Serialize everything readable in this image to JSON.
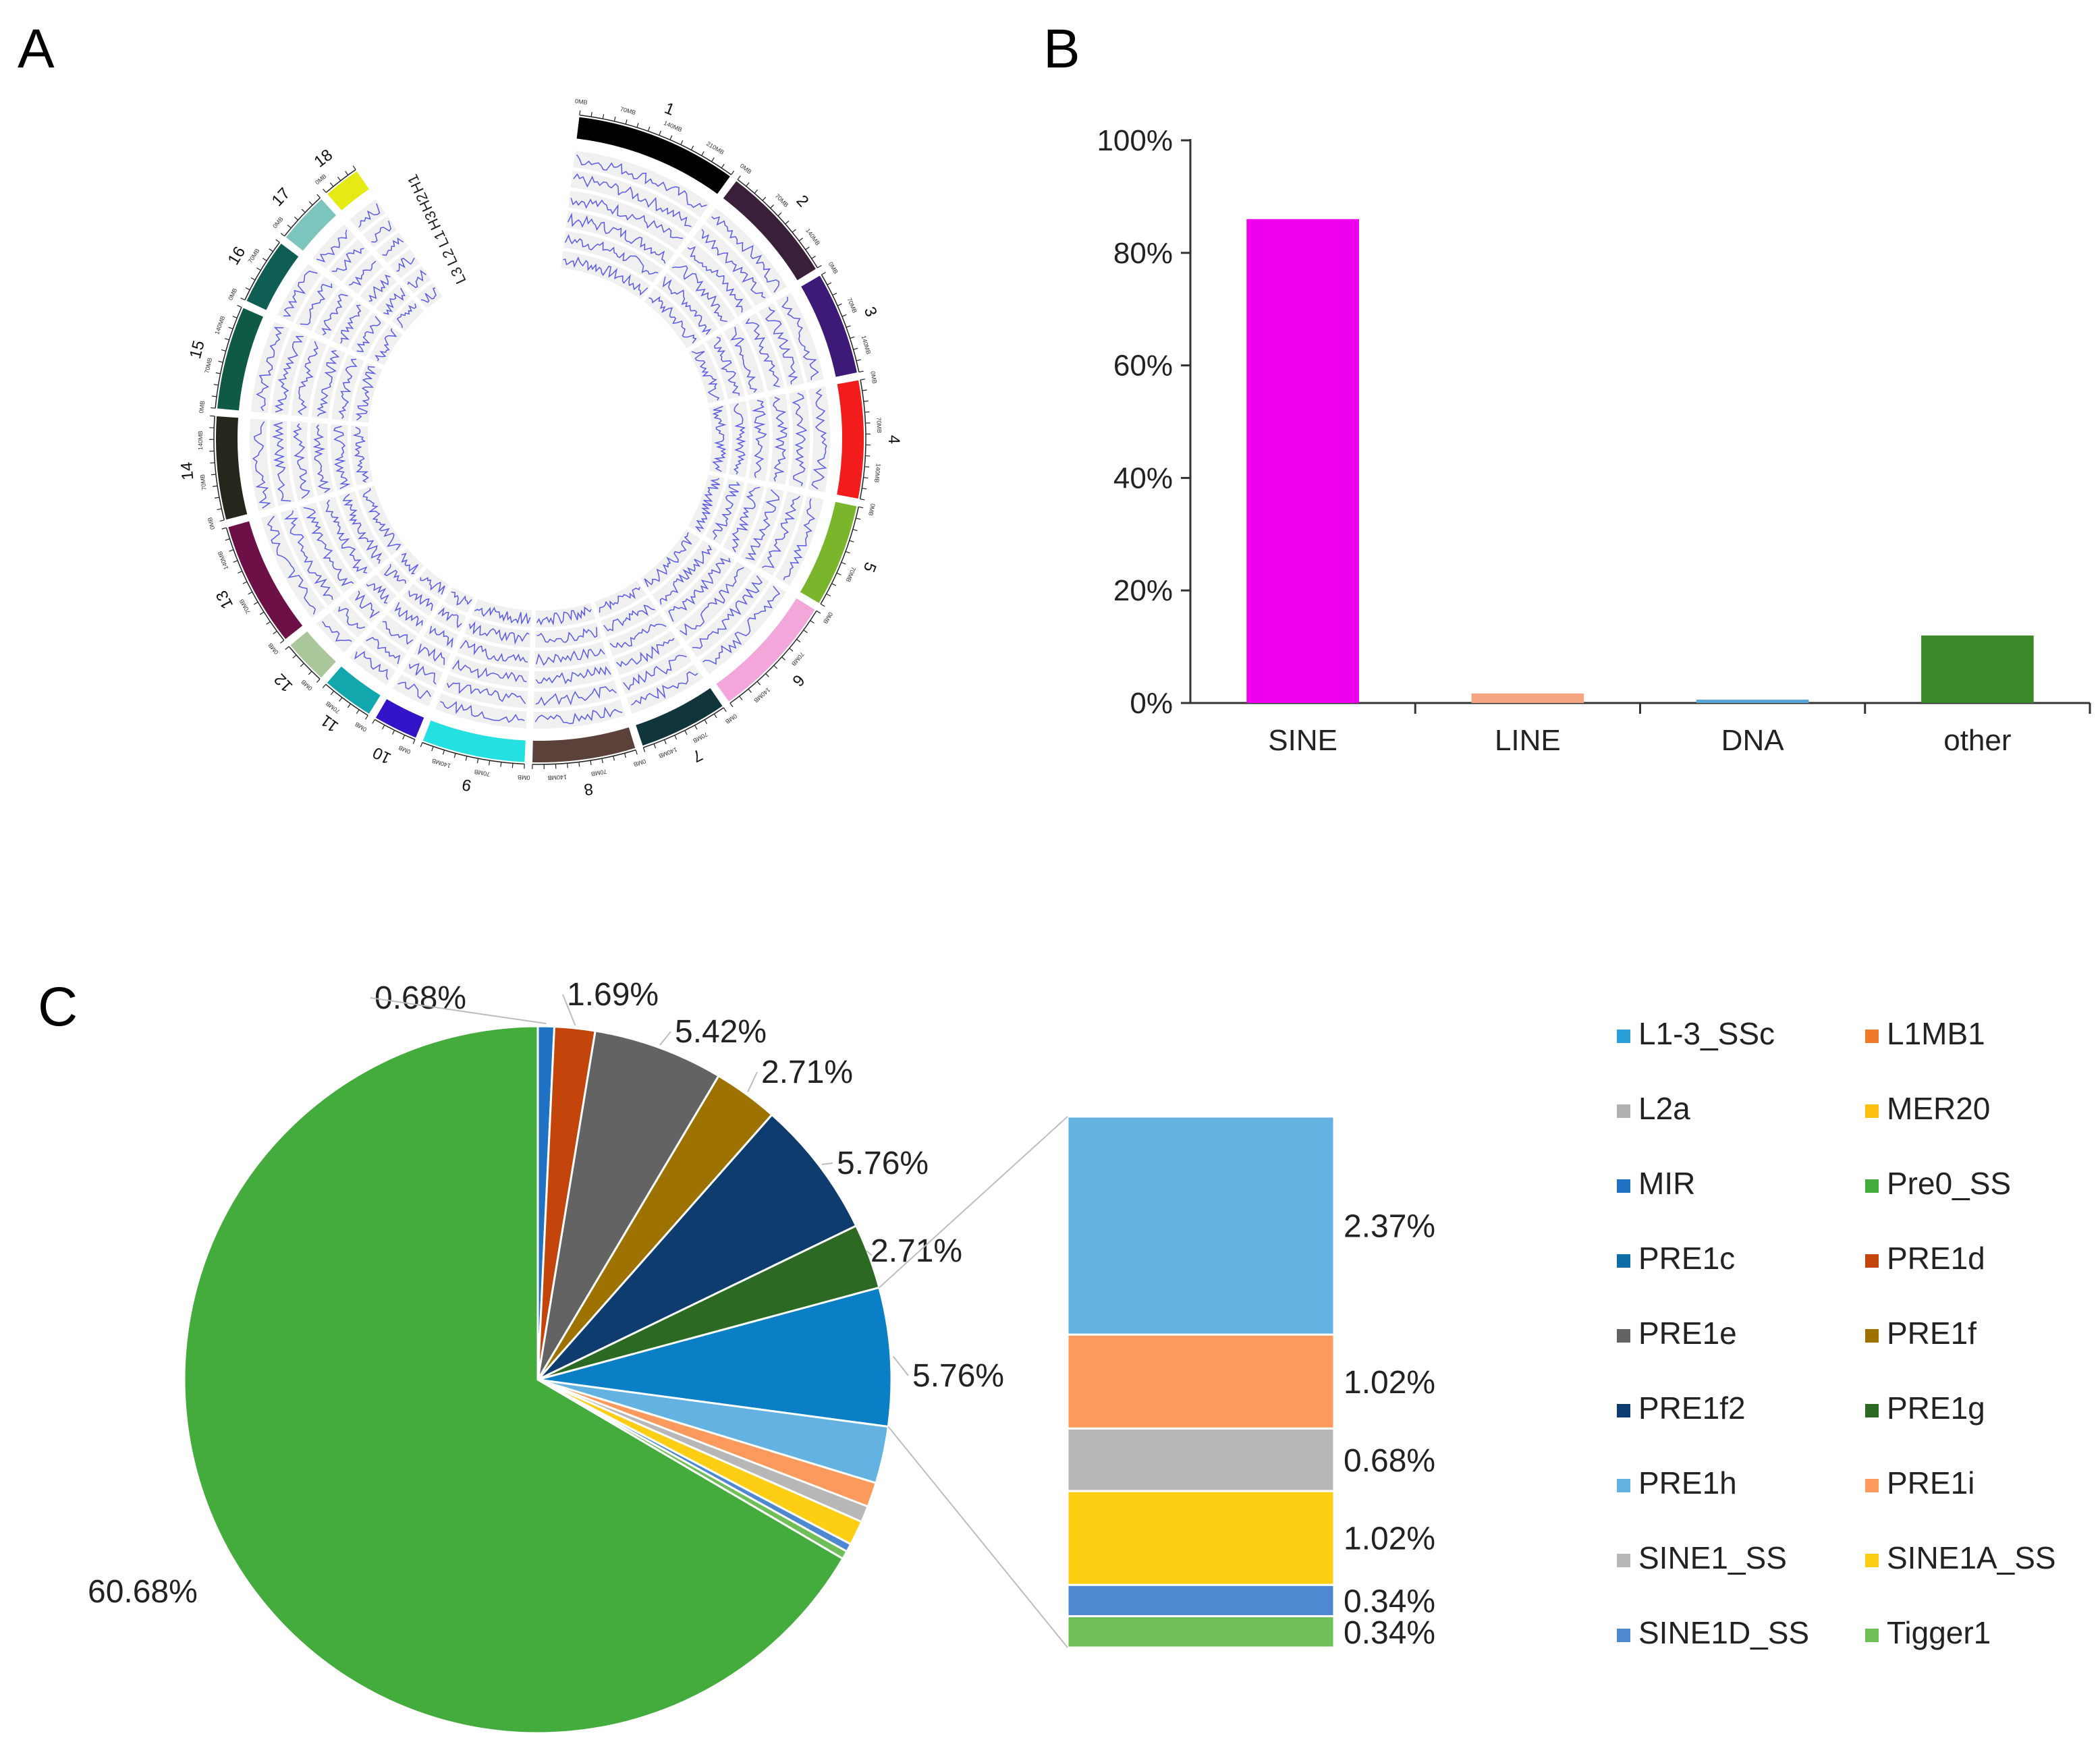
{
  "panels": {
    "a": {
      "letter": "A"
    },
    "b": {
      "letter": "B"
    },
    "c": {
      "letter": "C"
    }
  },
  "circos": {
    "chromosomes": [
      {
        "name": "1",
        "color": "#000000",
        "scale": [
          "0MB",
          "70MB",
          "140MB",
          "210MB"
        ]
      },
      {
        "name": "2",
        "color": "#3a1f3a",
        "scale": [
          "0MB",
          "70MB",
          "140MB"
        ]
      },
      {
        "name": "3",
        "color": "#3d1a78",
        "scale": [
          "0MB",
          "70MB",
          "140MB"
        ]
      },
      {
        "name": "4",
        "color": "#f21c1c",
        "scale": [
          "0MB",
          "70MB",
          "140MB"
        ]
      },
      {
        "name": "5",
        "color": "#7ab62b",
        "scale": [
          "0MB",
          "70MB"
        ]
      },
      {
        "name": "6",
        "color": "#f3a6da",
        "scale": [
          "0MB",
          "70MB",
          "140MB"
        ]
      },
      {
        "name": "7",
        "color": "#10363b",
        "scale": [
          "0MB",
          "70MB",
          "140MB"
        ]
      },
      {
        "name": "8",
        "color": "#5a423a",
        "scale": [
          "0MB",
          "70MB",
          "140MB"
        ]
      },
      {
        "name": "9",
        "color": "#25e0e0",
        "scale": [
          "0MB",
          "70MB",
          "140MB"
        ]
      },
      {
        "name": "10",
        "color": "#3314c8",
        "scale": [
          "0MB"
        ]
      },
      {
        "name": "11",
        "color": "#12a7ad",
        "scale": [
          "0MB",
          "70MB"
        ]
      },
      {
        "name": "12",
        "color": "#a9c79a",
        "scale": [
          "0MB"
        ]
      },
      {
        "name": "13",
        "color": "#6e1048",
        "scale": [
          "0MB",
          "70MB",
          "140MB"
        ]
      },
      {
        "name": "14",
        "color": "#26271c",
        "scale": [
          "0MB",
          "70MB",
          "140MB"
        ]
      },
      {
        "name": "15",
        "color": "#0e5a45",
        "scale": [
          "0MB",
          "70MB",
          "140MB"
        ]
      },
      {
        "name": "16",
        "color": "#0f5e55",
        "scale": [
          "0MB",
          "70MB"
        ]
      },
      {
        "name": "17",
        "color": "#7cc4be",
        "scale": [
          "0MB"
        ]
      },
      {
        "name": "18",
        "color": "#e5ea14",
        "scale": [
          "0MB"
        ]
      }
    ],
    "tracks": [
      "H1",
      "H2",
      "H3",
      "L1",
      "L2",
      "L3"
    ],
    "track_line_color": "#5a5ae6"
  },
  "chart_data": [
    {
      "type": "bar",
      "categories": [
        "SINE",
        "LINE",
        "DNA",
        "other"
      ],
      "values": [
        86,
        1.7,
        0.6,
        12
      ],
      "colors": [
        "#ee00ee",
        "#f4a582",
        "#5ba7d8",
        "#3a8a2c"
      ],
      "yticks": [
        "0%",
        "20%",
        "40%",
        "60%",
        "80%",
        "100%"
      ],
      "ylim": [
        0,
        100
      ]
    },
    {
      "type": "pie",
      "slices": [
        {
          "label": "MIR",
          "value": 0.68,
          "color": "#1f72c4"
        },
        {
          "label": "PRE1d",
          "value": 1.69,
          "color": "#c4450c"
        },
        {
          "label": "PRE1e",
          "value": 5.42,
          "color": "#636363"
        },
        {
          "label": "PRE1f",
          "value": 2.71,
          "color": "#9e7200"
        },
        {
          "label": "PRE1f2",
          "value": 5.76,
          "color": "#0e3c6e"
        },
        {
          "label": "PRE1g",
          "value": 2.71,
          "color": "#2c6a23"
        },
        {
          "label": "PRE1c",
          "value": 5.76,
          "color": "#0b7fc6"
        },
        {
          "label": "PRE1h",
          "value": 2.37,
          "color": "#63b2e1"
        },
        {
          "label": "PRE1i",
          "value": 1.02,
          "color": "#fb9a5c"
        },
        {
          "label": "SINE1_SS",
          "value": 0.68,
          "color": "#b7b7b7"
        },
        {
          "label": "SINE1A_SS",
          "value": 1.02,
          "color": "#fece15"
        },
        {
          "label": "SINE1D_SS",
          "value": 0.34,
          "color": "#4e88d0"
        },
        {
          "label": "Tigger1",
          "value": 0.34,
          "color": "#6fbf58"
        },
        {
          "label": "Pre0_SS",
          "value": 60.68,
          "color": "#43ac3c"
        }
      ],
      "slice_labels": {
        "MIR": "0.68%",
        "PRE1d": "1.69%",
        "PRE1e": "5.42%",
        "PRE1f": "2.71%",
        "PRE1f2": "5.76%",
        "PRE1g": "2.71%",
        "PRE1c": "5.76%",
        "Pre0_SS": "60.68%"
      },
      "breakout": [
        {
          "label": "PRE1h",
          "value": 2.37,
          "text": "2.37%",
          "color": "#63b2e1"
        },
        {
          "label": "PRE1i",
          "value": 1.02,
          "text": "1.02%",
          "color": "#fb9a5c"
        },
        {
          "label": "SINE1_SS",
          "value": 0.68,
          "text": "0.68%",
          "color": "#b7b7b7"
        },
        {
          "label": "SINE1A_SS",
          "value": 1.02,
          "text": "1.02%",
          "color": "#fece15"
        },
        {
          "label": "SINE1D_SS",
          "value": 0.34,
          "text": "0.34%",
          "color": "#4e88d0"
        },
        {
          "label": "Tigger1",
          "value": 0.34,
          "text": "0.34%",
          "color": "#6fbf58"
        }
      ],
      "legend": [
        {
          "label": "L1-3_SSc",
          "color": "#2a9fd9"
        },
        {
          "label": "L1MB1",
          "color": "#f07a2c"
        },
        {
          "label": "L2a",
          "color": "#b0b0b0"
        },
        {
          "label": "MER20",
          "color": "#fec010"
        },
        {
          "label": "MIR",
          "color": "#1f72c4"
        },
        {
          "label": "Pre0_SS",
          "color": "#43ac3c"
        },
        {
          "label": "PRE1c",
          "color": "#0b6ca8"
        },
        {
          "label": "PRE1d",
          "color": "#c4450c"
        },
        {
          "label": "PRE1e",
          "color": "#636363"
        },
        {
          "label": "PRE1f",
          "color": "#9e7200"
        },
        {
          "label": "PRE1f2",
          "color": "#0e3c6e"
        },
        {
          "label": "PRE1g",
          "color": "#2c6a23"
        },
        {
          "label": "PRE1h",
          "color": "#63b2e1"
        },
        {
          "label": "PRE1i",
          "color": "#fb9a5c"
        },
        {
          "label": "SINE1_SS",
          "color": "#b7b7b7"
        },
        {
          "label": "SINE1A_SS",
          "color": "#fece15"
        },
        {
          "label": "SINE1D_SS",
          "color": "#4e88d0"
        },
        {
          "label": "Tigger1",
          "color": "#6fbf58"
        }
      ]
    }
  ]
}
